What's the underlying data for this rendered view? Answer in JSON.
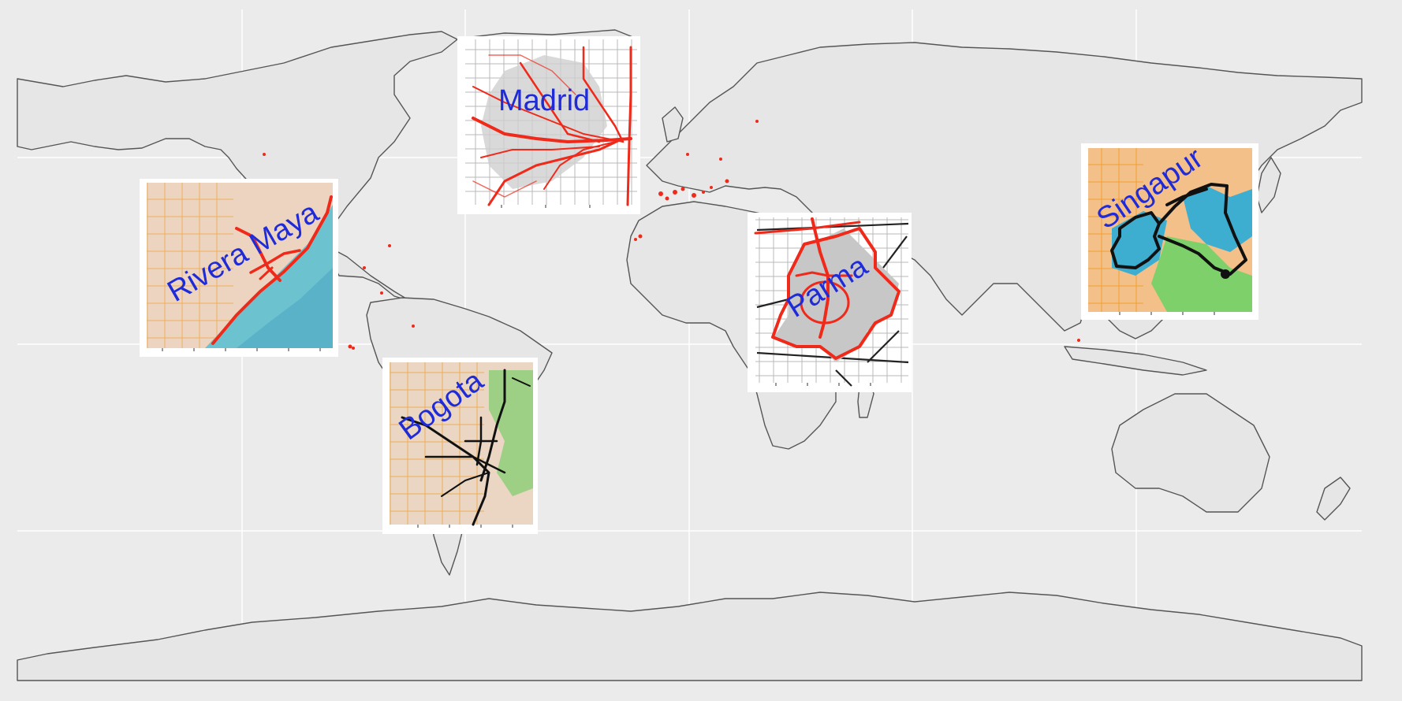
{
  "map": {
    "type": "world travel routes map",
    "background_color": "#ebebeb",
    "land_color": "#e6e6e6",
    "border_color": "#555555",
    "visited_point_color": "#ef2a1a"
  },
  "insets": [
    {
      "id": "madrid",
      "label": "Madrid",
      "route_color": "#ef2a1a",
      "basemap": "toner-lite"
    },
    {
      "id": "rivera-maya",
      "label": "Rivera Maya",
      "route_color": "#ef2a1a",
      "basemap": "watercolor"
    },
    {
      "id": "parma",
      "label": "Parma",
      "route_color": "#ef2a1a",
      "basemap": "toner"
    },
    {
      "id": "bogota",
      "label": "Bogota",
      "route_color": "#111111",
      "basemap": "terrain"
    },
    {
      "id": "singapur",
      "label": "Singapur",
      "route_color": "#111111",
      "basemap": "watercolor"
    }
  ]
}
